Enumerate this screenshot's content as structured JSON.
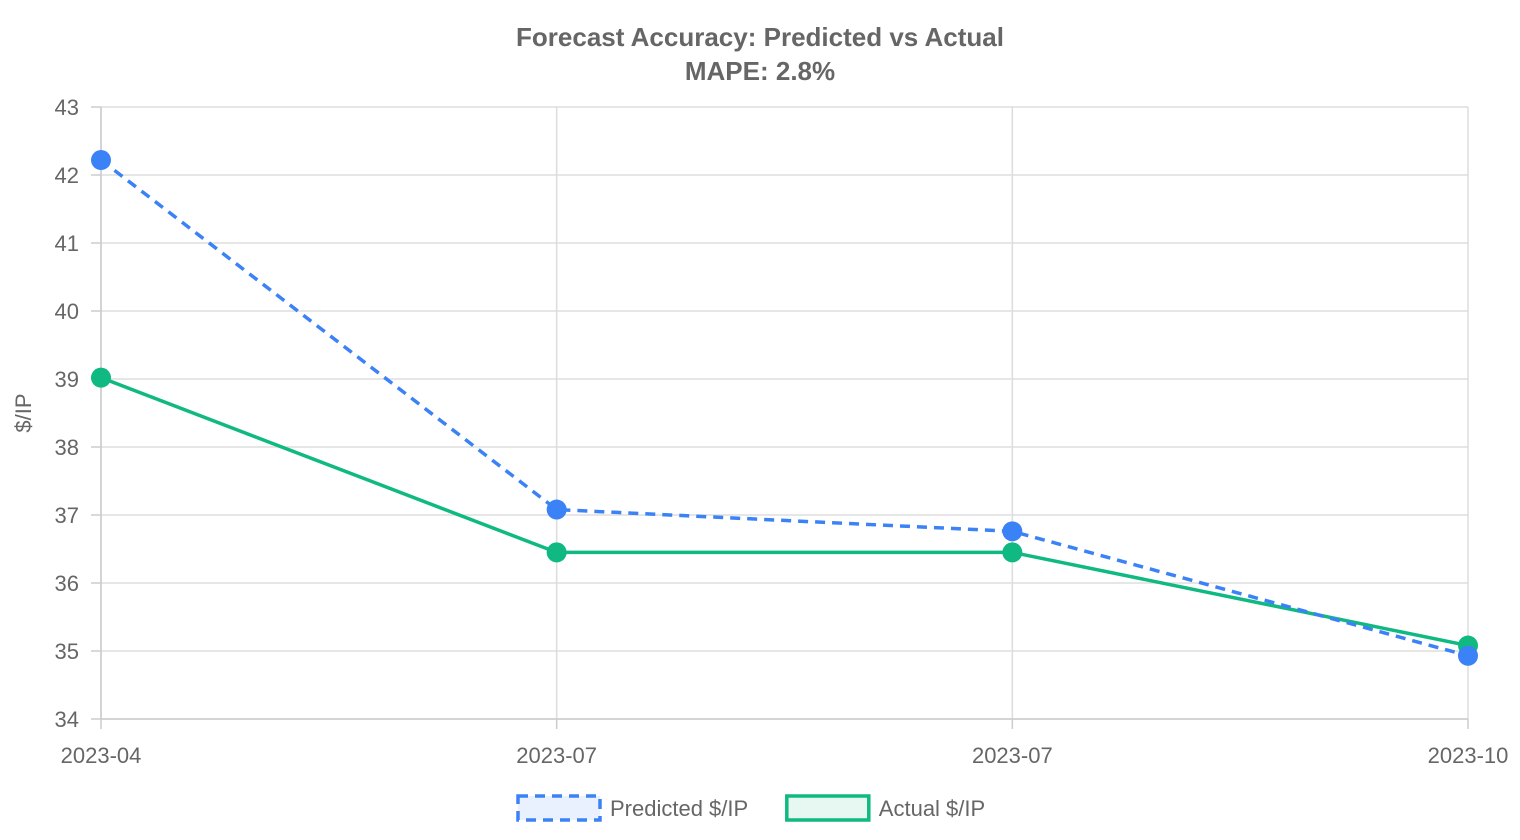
{
  "chart_data": {
    "type": "line",
    "title": "Forecast Accuracy: Predicted vs Actual",
    "subtitle": "MAPE: 2.8%",
    "xlabel": "",
    "ylabel": "$/IP",
    "categories": [
      "2023-04",
      "2023-07",
      "2023-07",
      "2023-10"
    ],
    "ylim": [
      34,
      43
    ],
    "yticks": [
      34,
      35,
      36,
      37,
      38,
      39,
      40,
      41,
      42,
      43
    ],
    "grid": true,
    "legend_position": "bottom",
    "series": [
      {
        "name": "Predicted $/IP",
        "values": [
          42.22,
          37.08,
          36.76,
          34.93
        ],
        "color": "#3b82f6",
        "fill": "#eaf1fe",
        "line_style": "dashed"
      },
      {
        "name": "Actual $/IP",
        "values": [
          39.02,
          36.45,
          36.45,
          35.08
        ],
        "color": "#10b981",
        "fill": "#e7f8f2",
        "line_style": "solid"
      }
    ]
  }
}
